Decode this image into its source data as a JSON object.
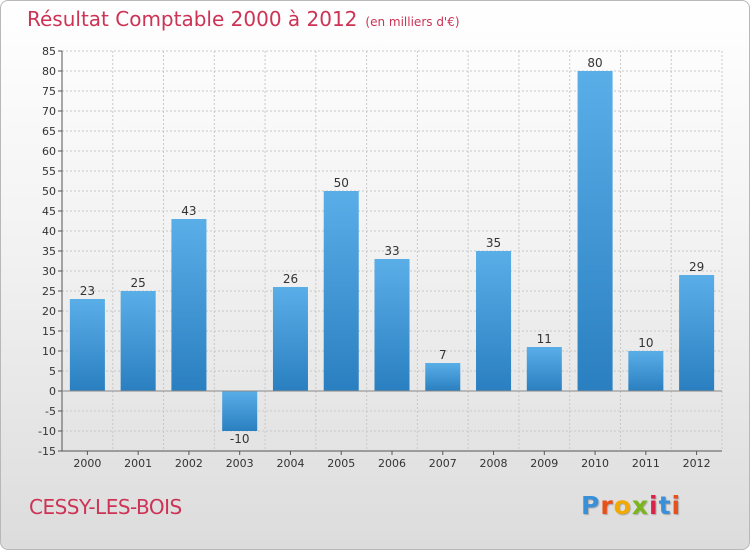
{
  "chart_data": {
    "type": "bar",
    "title": "Résultat Comptable 2000 à 2012",
    "subtitle": "(en milliers d'€)",
    "categories": [
      "2000",
      "2001",
      "2002",
      "2003",
      "2004",
      "2005",
      "2006",
      "2007",
      "2008",
      "2009",
      "2010",
      "2011",
      "2012"
    ],
    "values": [
      23,
      25,
      43,
      -10,
      26,
      50,
      33,
      7,
      35,
      11,
      80,
      10,
      29
    ],
    "data_labels": [
      "23",
      "25",
      "43",
      "-10",
      "26",
      "50",
      "33",
      "7",
      "35",
      "11",
      "80",
      "10",
      "29"
    ],
    "ylim": [
      -15,
      85
    ],
    "yticks": [
      -15,
      -10,
      -5,
      0,
      5,
      10,
      15,
      20,
      25,
      30,
      35,
      40,
      45,
      50,
      55,
      60,
      65,
      70,
      75,
      80,
      85
    ],
    "grid": true,
    "legend": "none",
    "bar_color_light": "#5aaee8",
    "bar_color_dark": "#2a7fc0"
  },
  "footer": {
    "commune": "CESSY-LES-BOIS",
    "logo_letters": [
      "P",
      "r",
      "o",
      "x",
      "i",
      "t",
      "i"
    ],
    "logo_colors": [
      "#3a8fd9",
      "#e8501a",
      "#f2a900",
      "#7ab51d",
      "#d8234a",
      "#3a8fd9",
      "#e8501a"
    ]
  }
}
